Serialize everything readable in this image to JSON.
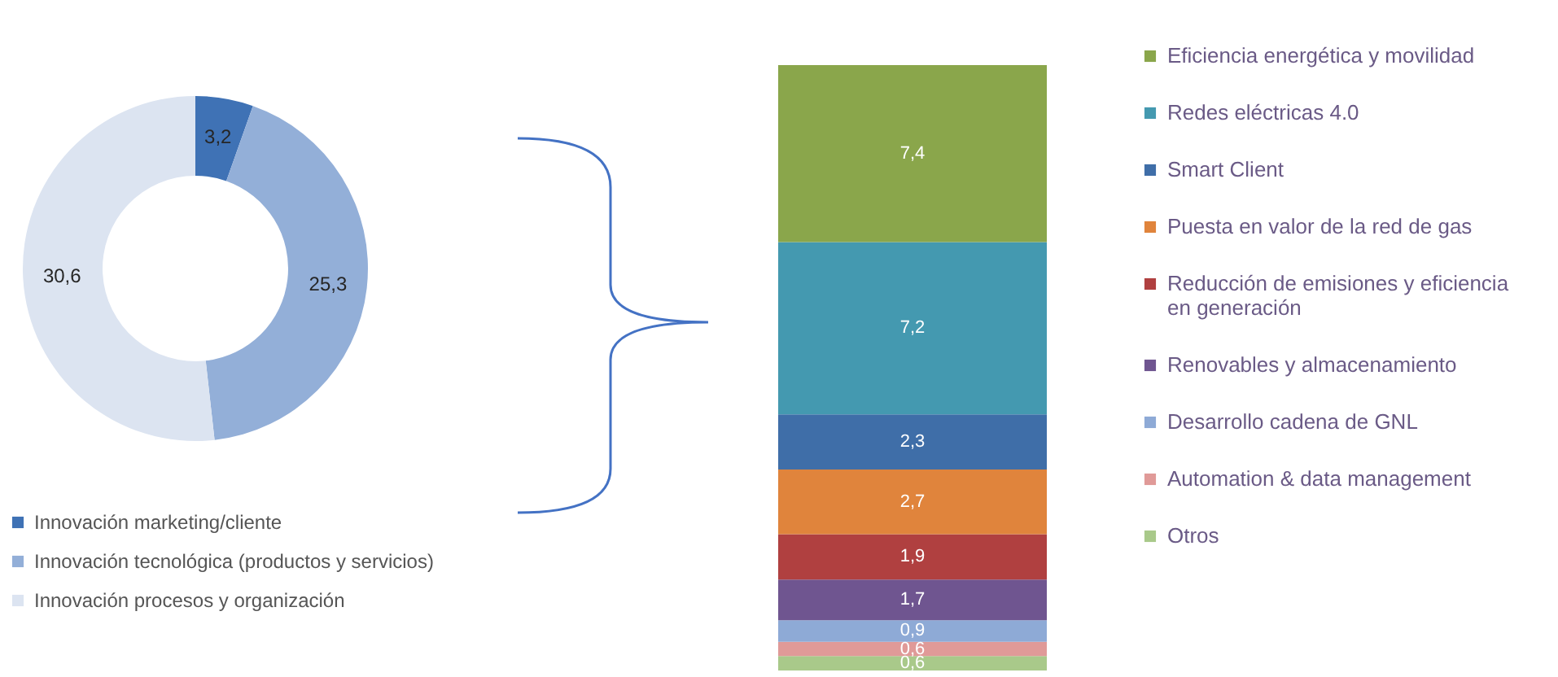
{
  "chart_data": [
    {
      "type": "donut",
      "categories": [
        "Innovación marketing/cliente",
        "Innovación tecnológica (productos y servicios)",
        "Innovación procesos y organización"
      ],
      "values": [
        3.2,
        25.3,
        30.6
      ],
      "value_labels": [
        "3,2",
        "25,3",
        "30,6"
      ],
      "colors": [
        "#3f72b5",
        "#93afd8",
        "#dce4f1"
      ],
      "legend": "bottom"
    },
    {
      "type": "bar",
      "stacked": true,
      "categories": [
        null
      ],
      "legend": "right",
      "series": [
        {
          "name": "Otros",
          "color": "#a9c98a",
          "values": [
            0.6
          ],
          "value_labels": [
            "0,6"
          ]
        },
        {
          "name": "Automation & data management",
          "color": "#e09a98",
          "values": [
            0.6
          ],
          "value_labels": [
            "0,6"
          ]
        },
        {
          "name": "Desarrollo cadena de GNL",
          "color": "#8eaad6",
          "values": [
            0.9
          ],
          "value_labels": [
            "0,9"
          ]
        },
        {
          "name": "Renovables y almacenamiento",
          "color": "#6f5590",
          "values": [
            1.7
          ],
          "value_labels": [
            "1,7"
          ]
        },
        {
          "name": "Reducción de emisiones y eficiencia en generación",
          "color": "#b04040",
          "values": [
            1.9
          ],
          "value_labels": [
            "1,9"
          ]
        },
        {
          "name": "Puesta en valor de la red de gas",
          "color": "#e0843c",
          "values": [
            2.7
          ],
          "value_labels": [
            "2,7"
          ]
        },
        {
          "name": "Smart Client",
          "color": "#3f6ea8",
          "values": [
            2.3
          ],
          "value_labels": [
            "2,3"
          ]
        },
        {
          "name": "Redes eléctricas 4.0",
          "color": "#4499b0",
          "values": [
            7.2
          ],
          "value_labels": [
            "7,2"
          ]
        },
        {
          "name": "Eficiencia energética y movilidad",
          "color": "#8aa64b",
          "values": [
            7.4
          ],
          "value_labels": [
            "7,4"
          ]
        }
      ]
    }
  ]
}
